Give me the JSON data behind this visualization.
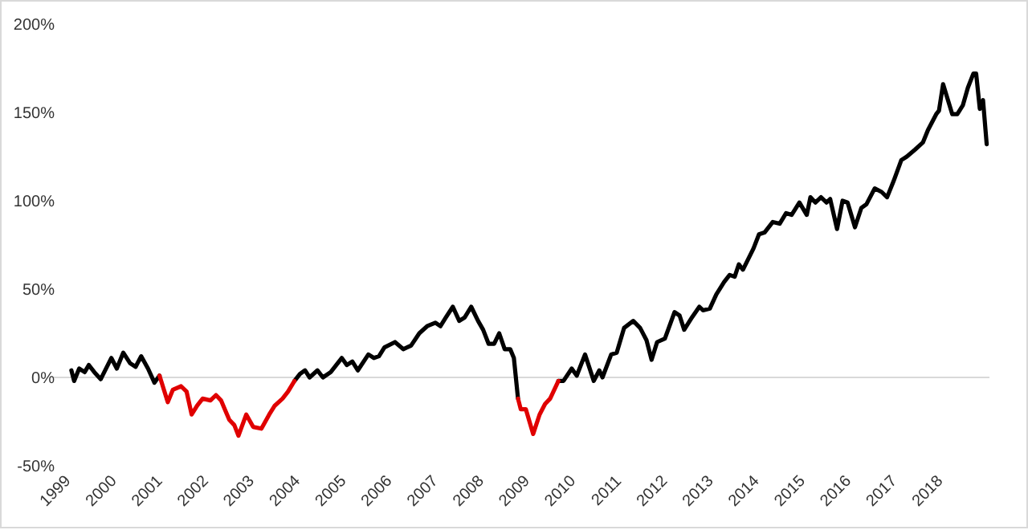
{
  "chart_data": {
    "type": "line",
    "xlim": [
      1998.6,
      2019
    ],
    "xticks": [
      1999,
      2000,
      2001,
      2002,
      2003,
      2004,
      2005,
      2006,
      2007,
      2008,
      2009,
      2010,
      2011,
      2012,
      2013,
      2014,
      2015,
      2016,
      2017,
      2018
    ],
    "ylim": [
      -50,
      200
    ],
    "yticks": [
      {
        "value": -50,
        "label": "-50%"
      },
      {
        "value": 0,
        "label": "0%"
      },
      {
        "value": 50,
        "label": "50%"
      },
      {
        "value": 100,
        "label": "100%"
      },
      {
        "value": 150,
        "label": "150%"
      },
      {
        "value": 200,
        "label": "200%"
      }
    ],
    "marker": "none",
    "line_style": "solid",
    "series": [
      {
        "color": "#000000",
        "x": [
          1999.0,
          1999.06,
          1999.17,
          1999.29,
          1999.38,
          1999.5,
          1999.64,
          1999.87,
          1999.99,
          2000.13,
          2000.28,
          2000.4,
          2000.52,
          2000.67,
          2000.81,
          2000.92,
          2002.5,
          2003.86,
          2003.98,
          2004.09,
          2004.19,
          2004.36,
          2004.48,
          2004.65,
          2004.89,
          2005.0,
          2005.12,
          2005.24,
          2005.47,
          2005.59,
          2005.7,
          2005.82,
          2006.05,
          2006.23,
          2006.4,
          2006.58,
          2006.75,
          2006.93,
          2007.04,
          2007.16,
          2007.31,
          2007.45,
          2007.57,
          2007.71,
          2007.86,
          2007.97,
          2008.09,
          2008.21,
          2008.32,
          2008.44,
          2008.56,
          2008.64,
          2008.73,
          2009.2,
          2009.61,
          2009.72,
          2009.9,
          2010.01,
          2010.19,
          2010.38,
          2010.5,
          2010.57,
          2010.76,
          2010.88,
          2011.04,
          2011.24,
          2011.39,
          2011.53,
          2011.64,
          2011.76,
          2011.93,
          2012.14,
          2012.25,
          2012.35,
          2012.52,
          2012.68,
          2012.76,
          2012.91,
          2013.05,
          2013.22,
          2013.34,
          2013.45,
          2013.54,
          2013.63,
          2013.86,
          2013.98,
          2014.1,
          2014.28,
          2014.43,
          2014.57,
          2014.69,
          2014.86,
          2015.02,
          2015.1,
          2015.21,
          2015.33,
          2015.45,
          2015.53,
          2015.68,
          2015.8,
          2015.91,
          2016.07,
          2016.21,
          2016.32,
          2016.5,
          2016.65,
          2016.77,
          2016.91,
          2017.08,
          2017.2,
          2017.38,
          2017.55,
          2017.66,
          2017.84,
          2017.9,
          2017.99,
          2018.19,
          2018.3,
          2018.42,
          2018.53,
          2018.65,
          2018.71,
          2018.79,
          2018.86,
          2018.94
        ],
        "values": [
          4,
          -2,
          5,
          3,
          7,
          3,
          -1,
          11,
          5,
          14,
          8,
          6,
          12,
          5,
          -3,
          1,
          null,
          -2,
          2,
          4,
          0,
          4,
          0,
          3,
          11,
          7,
          9,
          4,
          13,
          11,
          12,
          17,
          20,
          16,
          18,
          25,
          29,
          31,
          29,
          34,
          40,
          32,
          34,
          40,
          32,
          27,
          19,
          19,
          25,
          16,
          16,
          11,
          -12,
          null,
          -2,
          -2,
          5,
          1,
          13,
          -2,
          4,
          0,
          13,
          14,
          28,
          32,
          28,
          21,
          10,
          20,
          22,
          37,
          35,
          27,
          34,
          40,
          38,
          39,
          47,
          54,
          58,
          57,
          64,
          61,
          73,
          81,
          82,
          88,
          87,
          93,
          92,
          99,
          92,
          102,
          99,
          102,
          99,
          101,
          84,
          100,
          99,
          85,
          96,
          98,
          107,
          105,
          102,
          111,
          123,
          125,
          129,
          133,
          140,
          149,
          151,
          166,
          149,
          149,
          154,
          164,
          172,
          172,
          152,
          157,
          132
        ]
      },
      {
        "color": "#e00000",
        "x": [
          2000.92,
          2001.1,
          2001.21,
          2001.39,
          2001.51,
          2001.62,
          2001.74,
          2001.86,
          2002.03,
          2002.15,
          2002.26,
          2002.44,
          2002.55,
          2002.64,
          2002.81,
          2002.96,
          2003.14,
          2003.31,
          2003.43,
          2003.6,
          2003.72,
          2003.86,
          2006.0,
          2008.73,
          2008.79,
          2008.9,
          2009.06,
          2009.2,
          2009.32,
          2009.43,
          2009.61
        ],
        "values": [
          1,
          -14,
          -7,
          -5,
          -8,
          -21,
          -16,
          -12,
          -13,
          -10,
          -13,
          -24,
          -27,
          -33,
          -21,
          -28,
          -29,
          -21,
          -16,
          -12,
          -8,
          -2,
          null,
          -12,
          -18,
          -18,
          -32,
          -21,
          -15,
          -12,
          -2
        ]
      }
    ]
  }
}
